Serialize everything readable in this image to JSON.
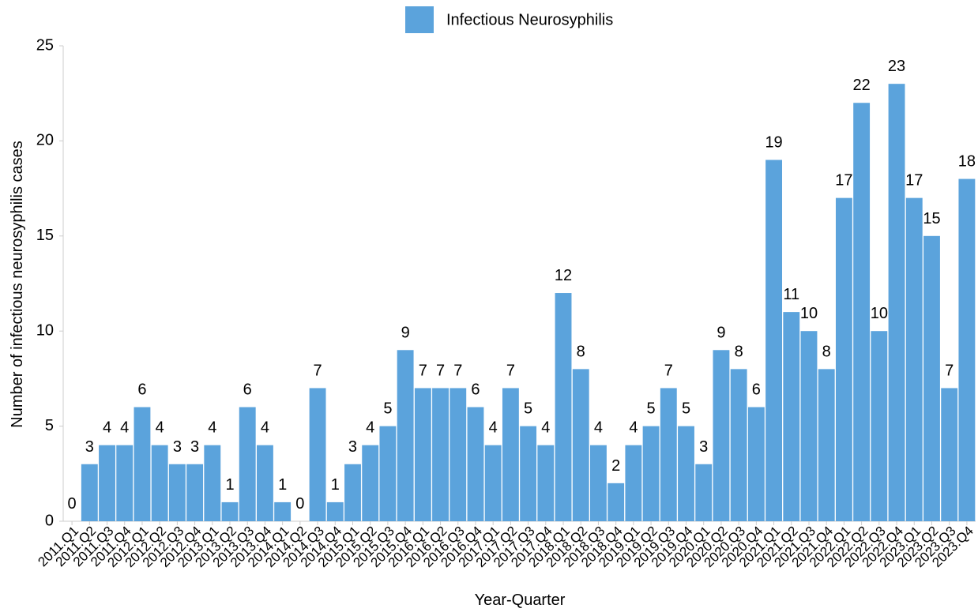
{
  "chart_data": {
    "type": "bar",
    "title_legend": "Infectious Neurosyphilis",
    "x_label": "Year-Quarter",
    "y_label": "Number of infectious neurosyphilis cases",
    "series": [
      {
        "name": "Infectious Neurosyphilis",
        "color": "#5ba3dc",
        "values": [
          0,
          3,
          4,
          4,
          6,
          4,
          3,
          3,
          4,
          1,
          6,
          4,
          1,
          0,
          7,
          1,
          3,
          4,
          5,
          9,
          7,
          7,
          7,
          6,
          4,
          7,
          5,
          4,
          12,
          8,
          4,
          2,
          4,
          5,
          7,
          5,
          3,
          9,
          8,
          6,
          19,
          11,
          10,
          8,
          17,
          22,
          10,
          23,
          17,
          15,
          7,
          18
        ]
      }
    ],
    "categories": [
      "2011.Q1",
      "2011.Q2",
      "2011.Q3",
      "2011.Q4",
      "2012.Q1",
      "2012.Q2",
      "2012.Q3",
      "2012.Q4",
      "2013.Q1",
      "2013.Q2",
      "2013.Q3",
      "2013.Q4",
      "2014.Q1",
      "2014.Q2",
      "2014.Q3",
      "2014.Q4",
      "2015.Q1",
      "2015.Q2",
      "2015.Q3",
      "2015.Q4",
      "2016.Q1",
      "2016.Q2",
      "2016.Q3",
      "2016.Q4",
      "2017.Q1",
      "2017.Q2",
      "2017.Q3",
      "2017.Q4",
      "2018.Q1",
      "2018.Q2",
      "2018.Q3",
      "2018.Q4",
      "2019.Q1",
      "2019.Q2",
      "2019.Q3",
      "2019.Q4",
      "2020.Q1",
      "2020.Q2",
      "2020.Q3",
      "2020.Q4",
      "2021.Q1",
      "2021.Q2",
      "2021.Q3",
      "2021.Q4",
      "2022.Q1",
      "2022.Q2",
      "2022.Q3",
      "2022.Q4",
      "2023.Q1",
      "2023.Q2",
      "2023.Q3",
      "2023.Q4"
    ],
    "ylim": [
      0,
      25
    ],
    "yticks": [
      0,
      5,
      10,
      15,
      20,
      25
    ],
    "legend": "top"
  }
}
